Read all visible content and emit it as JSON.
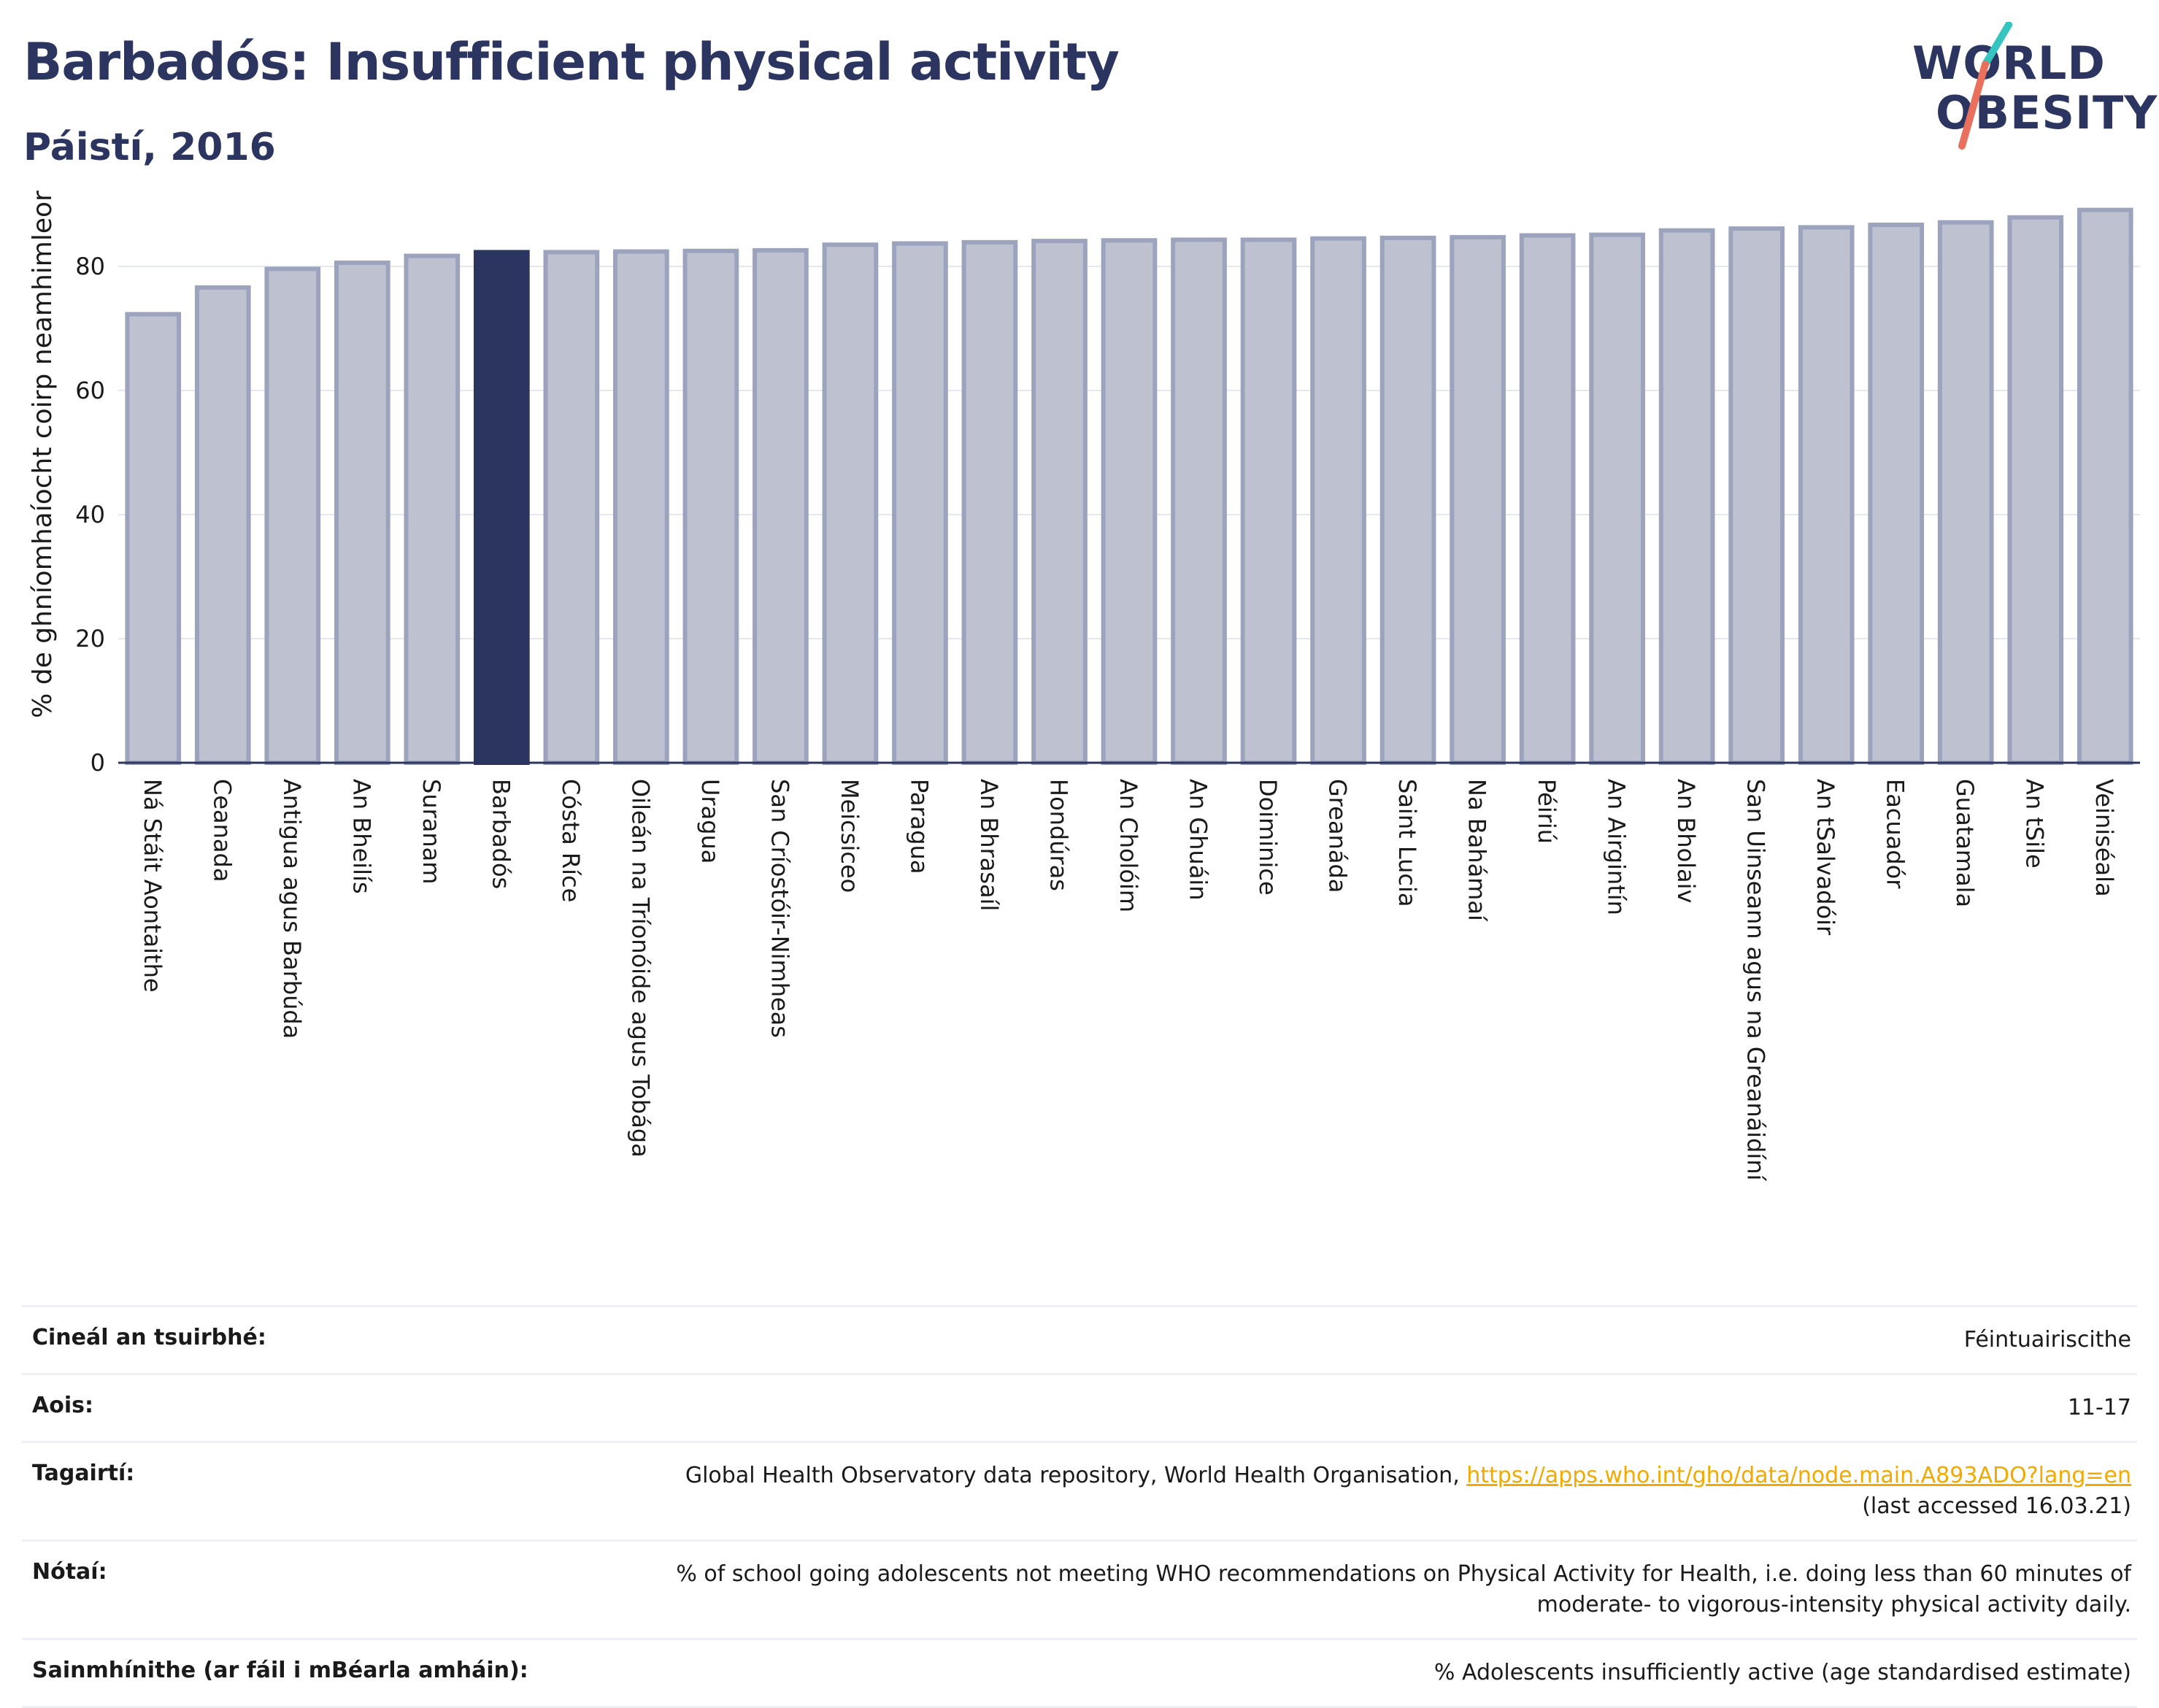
{
  "header": {
    "title": "Barbadós: Insufficient physical activity",
    "subtitle": "Páistí, 2016"
  },
  "logo": {
    "line1": "WORLD",
    "line2": "OBESITY"
  },
  "colors": {
    "bar": "#bec2d0",
    "bar_border": "#9ba3bd",
    "highlight": "#2b3560",
    "grid": "#e6e8ef",
    "axis": "#2b3560"
  },
  "chart_data": {
    "type": "bar",
    "ylabel": "% de ghníomhaíocht coirp neamhimleor",
    "xlabel": "",
    "ylim": [
      0,
      90
    ],
    "yticks": [
      0,
      20,
      40,
      60,
      80
    ],
    "grid": true,
    "highlight": "Barbadós",
    "categories": [
      "Ná Stáit Aontaithe",
      "Ceanada",
      "Antigua agus Barbúda",
      "An Bheilís",
      "Suranam",
      "Barbadós",
      "Cósta Ríce",
      "Oileán na Tríonóide agus Tobága",
      "Uragua",
      "San Críostóir-Nimheas",
      "Meicsiceo",
      "Paragua",
      "An Bhrasaíl",
      "Hondúras",
      "An Cholóim",
      "An Ghuáin",
      "Doiminice",
      "Greanáda",
      "Saint Lucia",
      "Na Bahámaí",
      "Péiriú",
      "An Airgintín",
      "An Bholaiv",
      "San Uinseann agus na Greanáidíní",
      "An tSalvadóir",
      "Eacuadór",
      "Guatamala",
      "An tSile",
      "Veiniséala"
    ],
    "values": [
      72.3,
      76.6,
      79.6,
      80.6,
      81.7,
      82.3,
      82.3,
      82.4,
      82.5,
      82.6,
      83.5,
      83.7,
      83.9,
      84.1,
      84.2,
      84.3,
      84.3,
      84.5,
      84.6,
      84.7,
      85.0,
      85.1,
      85.8,
      86.1,
      86.3,
      86.7,
      87.1,
      87.9,
      89.1
    ]
  },
  "info": [
    {
      "label": "Cineál an tsuirbhé:",
      "value": "Féintuairiscithe"
    },
    {
      "label": "Aois:",
      "value": "11-17"
    },
    {
      "label": "Tagairtí:",
      "value": "Global Health Observatory data repository, World Health Organisation, ",
      "link": "https://apps.who.int/gho/data/node.main.A893ADO?lang=en",
      "value2": "(last accessed 16.03.21)"
    },
    {
      "label": "Nótaí:",
      "value": "% of school going adolescents not meeting WHO recommendations on Physical Activity for Health, i.e. doing less than 60 minutes of",
      "value2": "moderate- to vigorous-intensity physical activity daily."
    },
    {
      "label": "Sainmhínithe (ar fáil i mBéarla amháin):",
      "value": "% Adolescents insufficiently active (age standardised estimate)"
    }
  ]
}
